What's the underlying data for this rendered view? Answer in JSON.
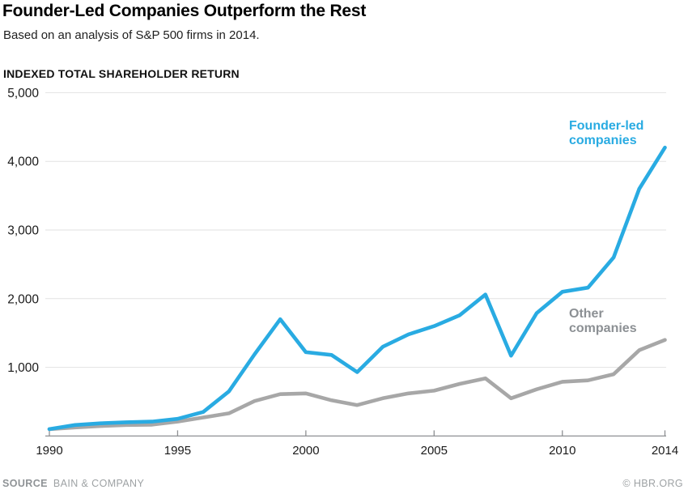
{
  "header": {
    "title": "Founder-Led Companies Outperform the Rest",
    "subtitle": "Based on an analysis of S&P 500 firms in 2014.",
    "axis_title": "INDEXED TOTAL SHAREHOLDER RETURN"
  },
  "chart_data": {
    "type": "line",
    "title": "Founder-Led Companies Outperform the Rest",
    "subtitle": "Based on an analysis of S&P 500 firms in 2014.",
    "ylabel": "INDEXED TOTAL SHAREHOLDER RETURN",
    "xlabel": "",
    "x": [
      1990,
      1991,
      1992,
      1993,
      1994,
      1995,
      1996,
      1997,
      1998,
      1999,
      2000,
      2001,
      2002,
      2003,
      2004,
      2005,
      2006,
      2007,
      2008,
      2009,
      2010,
      2011,
      2012,
      2013,
      2014
    ],
    "series": [
      {
        "name": "Founder-led companies",
        "color": "#29abe2",
        "label_color": "#29abe2",
        "values": [
          100,
          160,
          185,
          200,
          210,
          250,
          350,
          650,
          1190,
          1700,
          1220,
          1180,
          930,
          1300,
          1480,
          1600,
          1760,
          2060,
          1170,
          1790,
          2100,
          2160,
          2600,
          3600,
          4200
        ]
      },
      {
        "name": "Other companies",
        "color": "#a7a7a7",
        "label_color": "#8c9094",
        "values": [
          100,
          125,
          145,
          160,
          165,
          210,
          270,
          330,
          510,
          610,
          620,
          520,
          450,
          550,
          620,
          660,
          760,
          840,
          550,
          680,
          790,
          810,
          900,
          1250,
          1400
        ]
      }
    ],
    "ylim": [
      0,
      5000
    ],
    "yticks": [
      {
        "value": 1000,
        "label": "1,000"
      },
      {
        "value": 2000,
        "label": "2,000"
      },
      {
        "value": 3000,
        "label": "3,000"
      },
      {
        "value": 4000,
        "label": "4,000"
      },
      {
        "value": 5000,
        "label": "5,000"
      }
    ],
    "xticks": [
      {
        "value": 1990,
        "label": "1990"
      },
      {
        "value": 1995,
        "label": "1995"
      },
      {
        "value": 2000,
        "label": "2000"
      },
      {
        "value": 2005,
        "label": "2005"
      },
      {
        "value": 2010,
        "label": "2010"
      },
      {
        "value": 2014,
        "label": "2014"
      }
    ],
    "grid": "horizontal",
    "legend_position": "inline-right",
    "colors": {
      "gridline": "#e2e2e2",
      "axis": "#8e9093",
      "tick_text": "#1a1a1a"
    }
  },
  "footer": {
    "source_label": "SOURCE",
    "source_value": "BAIN & COMPANY",
    "credit": "© HBR.ORG"
  }
}
